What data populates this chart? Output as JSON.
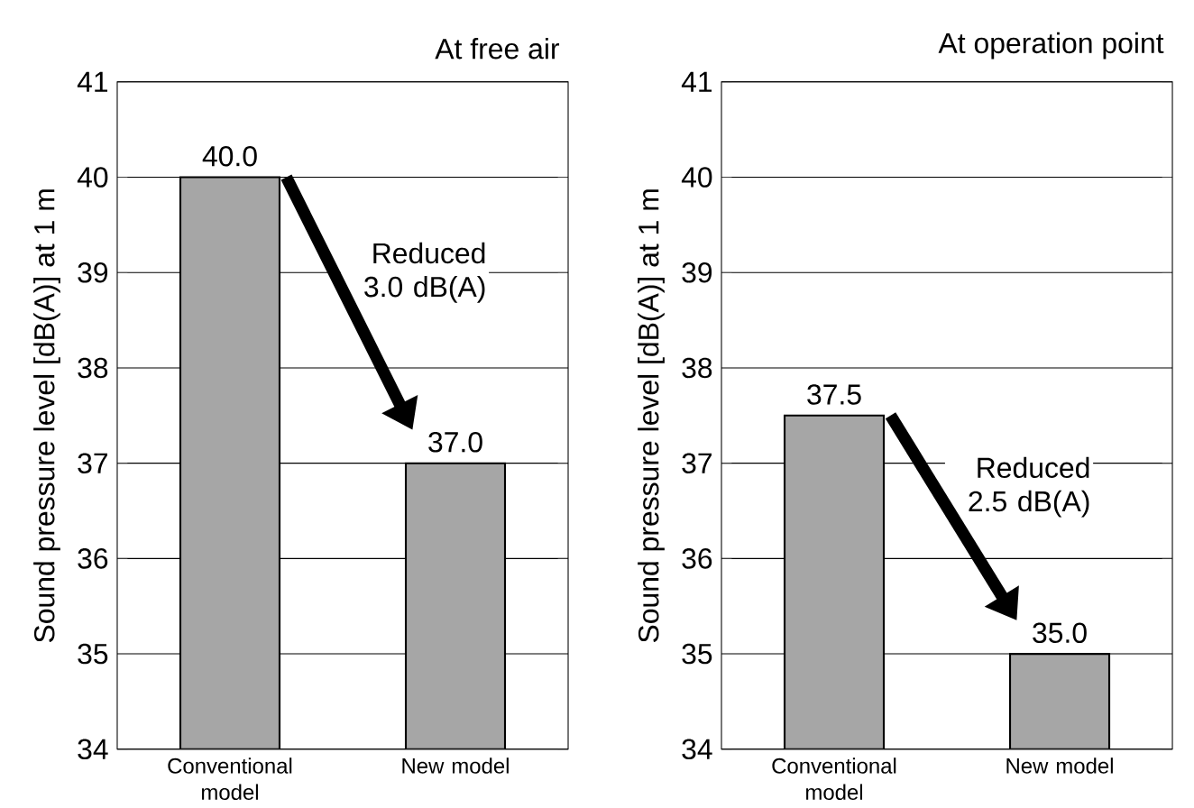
{
  "chart_data": [
    {
      "type": "bar",
      "title": "At free air",
      "ylabel": "Sound pressure level [dB(A)] at 1 m",
      "categories": [
        "Conventional model",
        "New model"
      ],
      "values": [
        40.0,
        37.0
      ],
      "value_labels": [
        "40.0",
        "37.0"
      ],
      "color": "#a6a6a6",
      "ylim": [
        34,
        41
      ],
      "yticks": [
        34,
        35,
        36,
        37,
        38,
        39,
        40,
        41
      ],
      "grid": "y",
      "annotations": [
        "Reduced 3.0 dB(A)"
      ]
    },
    {
      "type": "bar",
      "title": "At operation point",
      "ylabel": "Sound pressure level [dB(A)] at 1 m",
      "categories": [
        "Conventional model",
        "New model"
      ],
      "values": [
        37.5,
        35.0
      ],
      "value_labels": [
        "37.5",
        "35.0"
      ],
      "color": "#a6a6a6",
      "ylim": [
        34,
        41
      ],
      "yticks": [
        34,
        35,
        36,
        37,
        38,
        39,
        40,
        41
      ],
      "grid": "y",
      "annotations": [
        "Reduced 2.5 dB(A)"
      ]
    }
  ]
}
